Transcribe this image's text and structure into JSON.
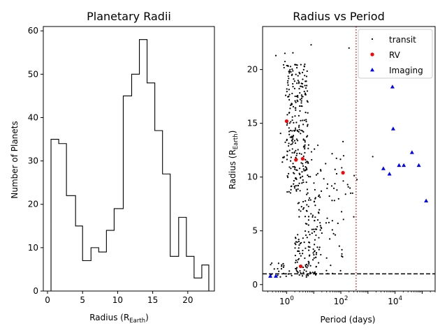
{
  "chart_data": [
    {
      "type": "histogram",
      "title": "Planetary Radii",
      "xlabel_main": "Radius (R",
      "xlabel_sub": "Earth",
      "xlabel_close": ")",
      "ylabel": "Number of Planets",
      "xlim": [
        -0.6,
        23.8
      ],
      "ylim": [
        0,
        61
      ],
      "xticks": [
        0,
        5,
        10,
        15,
        20
      ],
      "yticks": [
        0,
        10,
        20,
        30,
        40,
        50,
        60
      ],
      "bin_edges": [
        0.5,
        1.6,
        2.7,
        4.0,
        5.0,
        6.2,
        7.3,
        8.4,
        9.5,
        10.8,
        12.0,
        13.1,
        14.2,
        15.3,
        16.4,
        17.5,
        18.7,
        19.8,
        20.9,
        22.0,
        23.0
      ],
      "counts": [
        35,
        34,
        22,
        15,
        7,
        10,
        9,
        14,
        19,
        45,
        50,
        58,
        48,
        37,
        27,
        8,
        17,
        8,
        3,
        6
      ]
    },
    {
      "type": "scatter",
      "title": "Radius vs Period",
      "xlabel": "Period (days)",
      "ylabel_main": "Radius (R",
      "ylabel_sub": "Earth",
      "ylabel_close": ")",
      "xscale": "log",
      "xlim": [
        0.13,
        300000
      ],
      "ylim": [
        -0.6,
        24.0
      ],
      "xticks": [
        {
          "value": 1,
          "base": "10",
          "exp": "0"
        },
        {
          "value": 100,
          "base": "10",
          "exp": "2"
        },
        {
          "value": 10000,
          "base": "10",
          "exp": "4"
        }
      ],
      "yticks": [
        0,
        5,
        10,
        15,
        20
      ],
      "hline": {
        "y": 1,
        "style": "dashed",
        "color": "#000000"
      },
      "vline": {
        "x": 365,
        "style": "dotted",
        "color": "#d62728"
      },
      "legend_position": "upper right",
      "series": [
        {
          "name": "transit",
          "marker": "point",
          "color": "#000000",
          "random_fill": {
            "count": 520,
            "seed": 7,
            "clusters": [
              {
                "weight": 0.5,
                "logx_range": [
                  0.0,
                  0.8
                ],
                "y_range": [
                  8.5,
                  20.5
                ]
              },
              {
                "weight": 0.16,
                "logx_range": [
                  0.3,
                  1.1
                ],
                "y_range": [
                  0.7,
                  4.5
                ]
              },
              {
                "weight": 0.1,
                "logx_range": [
                  0.4,
                  1.3
                ],
                "y_range": [
                  4.5,
                  8.5
                ]
              },
              {
                "weight": 0.14,
                "logx_range": [
                  0.8,
                  2.1
                ],
                "y_range": [
                  1.0,
                  13.0
                ]
              },
              {
                "weight": 0.04,
                "logx_range": [
                  -0.6,
                  0.2
                ],
                "y_range": [
                  0.6,
                  2.0
                ]
              },
              {
                "weight": 0.04,
                "logx_range": [
                  -0.3,
                  0.4
                ],
                "y_range": [
                  11.0,
                  22.5
                ]
              },
              {
                "weight": 0.02,
                "logx_range": [
                  2.0,
                  2.6
                ],
                "y_range": [
                  6.0,
                  12.0
                ]
              }
            ]
          },
          "points": [
            {
              "period": 0.25,
              "radius": 0.7
            },
            {
              "period": 0.4,
              "radius": 21.3
            },
            {
              "period": 200,
              "radius": 22.0
            },
            {
              "period": 1500,
              "radius": 11.9
            },
            {
              "period": 230,
              "radius": 8.5
            },
            {
              "period": 270,
              "radius": 8.5
            },
            {
              "period": 300,
              "radius": 6.3
            },
            {
              "period": 120,
              "radius": 13.3
            },
            {
              "period": 8,
              "radius": 22.3
            }
          ]
        },
        {
          "name": "RV",
          "marker": "circle",
          "color": "#ff0000",
          "points": [
            {
              "period": 1.0,
              "radius": 15.2
            },
            {
              "period": 2.2,
              "radius": 11.6
            },
            {
              "period": 3.9,
              "radius": 11.7
            },
            {
              "period": 3.3,
              "radius": 1.7
            },
            {
              "period": 120,
              "radius": 10.4
            }
          ]
        },
        {
          "name": "Imaging",
          "marker": "triangle",
          "color": "#0000ff",
          "points": [
            {
              "period": 0.25,
              "radius": 0.8
            },
            {
              "period": 0.4,
              "radius": 0.8
            },
            {
              "period": 3700,
              "radius": 10.8
            },
            {
              "period": 6200,
              "radius": 10.3
            },
            {
              "period": 8000,
              "radius": 18.4
            },
            {
              "period": 8500,
              "radius": 14.5
            },
            {
              "period": 14000,
              "radius": 11.1
            },
            {
              "period": 21000,
              "radius": 11.1
            },
            {
              "period": 42000,
              "radius": 12.3
            },
            {
              "period": 75000,
              "radius": 11.1
            },
            {
              "period": 140000,
              "radius": 7.8
            }
          ]
        }
      ]
    }
  ]
}
